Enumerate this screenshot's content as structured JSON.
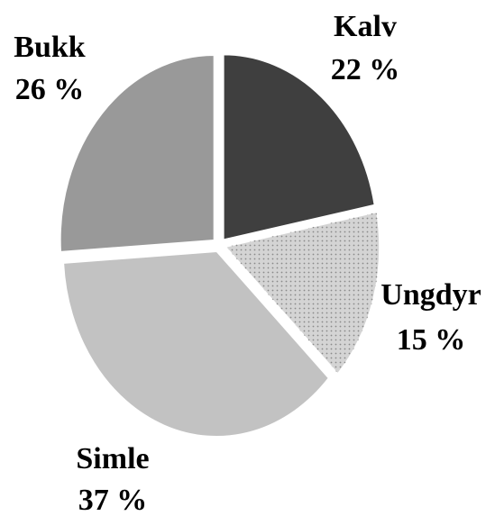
{
  "chart_data": {
    "type": "pie",
    "categories": [
      "Kalv",
      "Ungdyr",
      "Simle",
      "Bukk"
    ],
    "values": [
      22,
      15,
      37,
      26
    ],
    "value_labels": [
      "22 %",
      "15 %",
      "37 %",
      "26 %"
    ],
    "colors": [
      "#3f3f3f",
      "#d4d4d4",
      "#c2c2c2",
      "#999999"
    ]
  }
}
